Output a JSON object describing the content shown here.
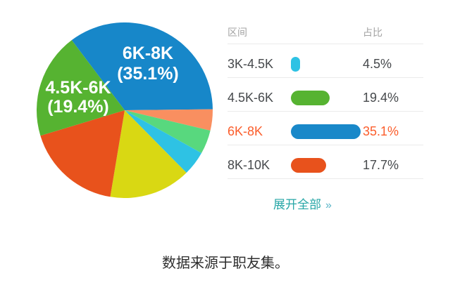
{
  "chart_data": {
    "type": "pie",
    "title": "",
    "legend_position": "right",
    "start_angle_deg": -37,
    "clockwise": true,
    "slices": [
      {
        "label": "6K-8K",
        "value": 35.1,
        "color": "#1787c9"
      },
      {
        "label": "",
        "value": 3.9,
        "color": "#f98f60"
      },
      {
        "label": "",
        "value": 4.4,
        "color": "#58d87e"
      },
      {
        "label": "3K-4.5K",
        "value": 4.5,
        "color": "#2ec2e4"
      },
      {
        "label": "",
        "value": 15.0,
        "color": "#d9d813"
      },
      {
        "label": "8K-10K",
        "value": 17.7,
        "color": "#e8521c"
      },
      {
        "label": "4.5K-6K",
        "value": 19.4,
        "color": "#56b331"
      }
    ],
    "labels_on_pie": [
      {
        "line1": "6K-8K",
        "line2": "(35.1%)"
      },
      {
        "line1": "4.5K-6K",
        "line2": "(19.4%)"
      }
    ]
  },
  "table": {
    "headers": {
      "interval": "区间",
      "share": "占比"
    },
    "rows": [
      {
        "interval": "3K-4.5K",
        "share": "4.5%",
        "value": 4.5,
        "color": "#2ec2e4",
        "highlight": false
      },
      {
        "interval": "4.5K-6K",
        "share": "19.4%",
        "value": 19.4,
        "color": "#56b331",
        "highlight": false
      },
      {
        "interval": "6K-8K",
        "share": "35.1%",
        "value": 35.1,
        "color": "#1988c9",
        "highlight": true
      },
      {
        "interval": "8K-10K",
        "share": "17.7%",
        "value": 17.7,
        "color": "#e8521c",
        "highlight": false
      }
    ],
    "expand_link": "展开全部",
    "expand_arrow": "»"
  },
  "caption": "数据来源于职友集。",
  "colors": {
    "highlight_text": "#fb5d2b",
    "link": "#26a6a6",
    "link_arrow": "#5ab5c8"
  }
}
